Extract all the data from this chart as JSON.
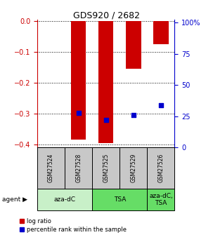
{
  "title": "GDS920 / 2682",
  "samples": [
    "GSM27524",
    "GSM27528",
    "GSM27525",
    "GSM27529",
    "GSM27526"
  ],
  "log_ratios": [
    0.0,
    -0.385,
    -0.395,
    -0.155,
    -0.075
  ],
  "percentile_ranks": [
    null,
    27.5,
    22.0,
    26.0,
    34.0
  ],
  "ylim_left": [
    -0.41,
    0.005
  ],
  "ylim_right": [
    0,
    102.6
  ],
  "yticks_left": [
    0.0,
    -0.1,
    -0.2,
    -0.3,
    -0.4
  ],
  "yticks_right": [
    0,
    25,
    50,
    75,
    100
  ],
  "ytick_labels_right": [
    "0",
    "25",
    "50",
    "75",
    "100%"
  ],
  "bar_color": "#cc0000",
  "square_color": "#0000cc",
  "bar_width": 0.55,
  "legend_log_ratio": "log ratio",
  "legend_percentile": "percentile rank within the sample",
  "left_axis_color": "#cc0000",
  "right_axis_color": "#0000cc",
  "group_colors": [
    "#c8f0c8",
    "#66dd66",
    "#66dd66"
  ],
  "group_labels": [
    "aza-dC",
    "TSA",
    "aza-dC,\nTSA"
  ],
  "group_ranges": [
    [
      0,
      1
    ],
    [
      2,
      3
    ],
    [
      4,
      4
    ]
  ],
  "sample_box_color": "#c8c8c8"
}
